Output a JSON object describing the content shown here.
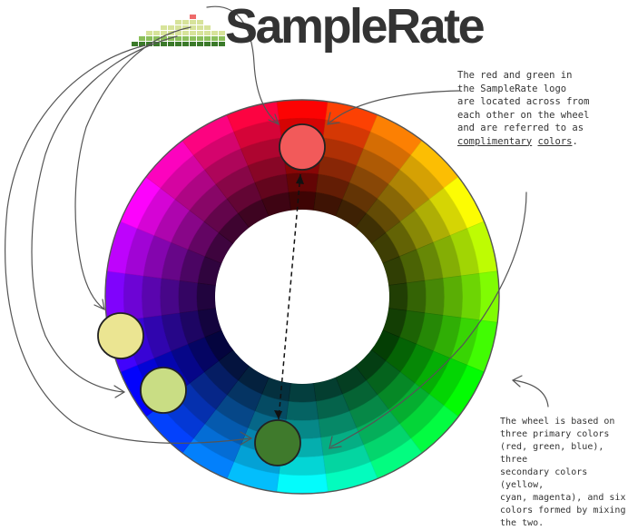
{
  "logo": {
    "text": "SampleRate",
    "bar_colors": {
      "dark": "#3b7a2a",
      "mid": "#8bbf5a",
      "light": "#d7e39a",
      "top": "#ee6a6a"
    }
  },
  "annotations": {
    "complementary": {
      "line1": "The red and green in",
      "line2": "the SampleRate logo",
      "line3": "are located across from",
      "line4": "each other on the wheel",
      "line5": "and are referred to as",
      "line6_term": "complimentary",
      "line6_gap": " ",
      "line6_term2": "colors",
      "line6_end": "."
    },
    "wheel_basis": {
      "line1": "The wheel is based on",
      "line2": "three primary colors",
      "line3": "(red, green, blue), three",
      "line4": "secondary colors (yellow,",
      "line5": "cyan, magenta), and six",
      "line6": "colors formed by mixing",
      "line7": "the two."
    }
  },
  "wheel": {
    "segments": 24,
    "rings": 6
  },
  "markers": [
    {
      "name": "marker-red",
      "color": "#f25a5a"
    },
    {
      "name": "marker-light-yellow",
      "color": "#ebe592"
    },
    {
      "name": "marker-light-green",
      "color": "#c9dd84"
    },
    {
      "name": "marker-dark-green",
      "color": "#3f7a2c"
    }
  ]
}
